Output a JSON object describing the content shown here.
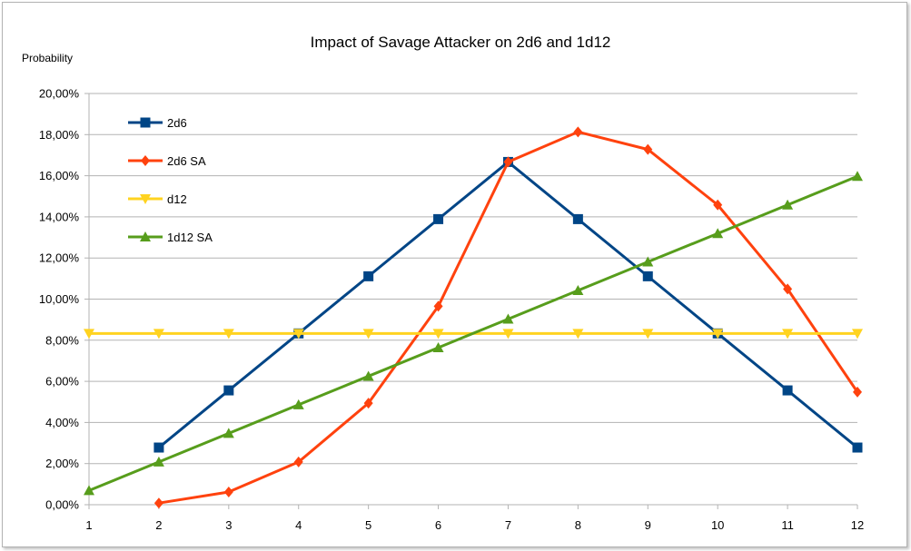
{
  "chart_data": {
    "type": "line",
    "title": "Impact of Savage Attacker on 2d6 and 1d12",
    "xlabel": "",
    "ylabel": "Probability",
    "x": [
      1,
      2,
      3,
      4,
      5,
      6,
      7,
      8,
      9,
      10,
      11,
      12
    ],
    "xlim": [
      1,
      12
    ],
    "ylim": [
      0,
      20
    ],
    "y_tick_step": 2,
    "y_tick_labels": [
      "0,00%",
      "2,00%",
      "4,00%",
      "6,00%",
      "8,00%",
      "10,00%",
      "12,00%",
      "14,00%",
      "16,00%",
      "18,00%",
      "20,00%"
    ],
    "x_tick_labels": [
      "1",
      "2",
      "3",
      "4",
      "5",
      "6",
      "7",
      "8",
      "9",
      "10",
      "11",
      "12"
    ],
    "grid": true,
    "legend_position": "top-left inside",
    "series": [
      {
        "name": "2d6",
        "color": "#004586",
        "marker": "square",
        "values": [
          null,
          2.78,
          5.56,
          8.33,
          11.11,
          13.89,
          16.67,
          13.89,
          11.11,
          8.33,
          5.56,
          2.78
        ]
      },
      {
        "name": "2d6 SA",
        "color": "#ff420e",
        "marker": "diamond",
        "values": [
          null,
          0.08,
          0.62,
          2.08,
          4.94,
          9.65,
          16.67,
          18.13,
          17.28,
          14.58,
          10.49,
          5.48
        ]
      },
      {
        "name": "d12",
        "color": "#ffd320",
        "marker": "triangle-down",
        "values": [
          8.33,
          8.33,
          8.33,
          8.33,
          8.33,
          8.33,
          8.33,
          8.33,
          8.33,
          8.33,
          8.33,
          8.33
        ]
      },
      {
        "name": "1d12 SA",
        "color": "#579d1c",
        "marker": "triangle-up",
        "values": [
          0.69,
          2.08,
          3.47,
          4.86,
          6.25,
          7.64,
          9.03,
          10.42,
          11.81,
          13.19,
          14.58,
          15.97
        ]
      }
    ]
  }
}
